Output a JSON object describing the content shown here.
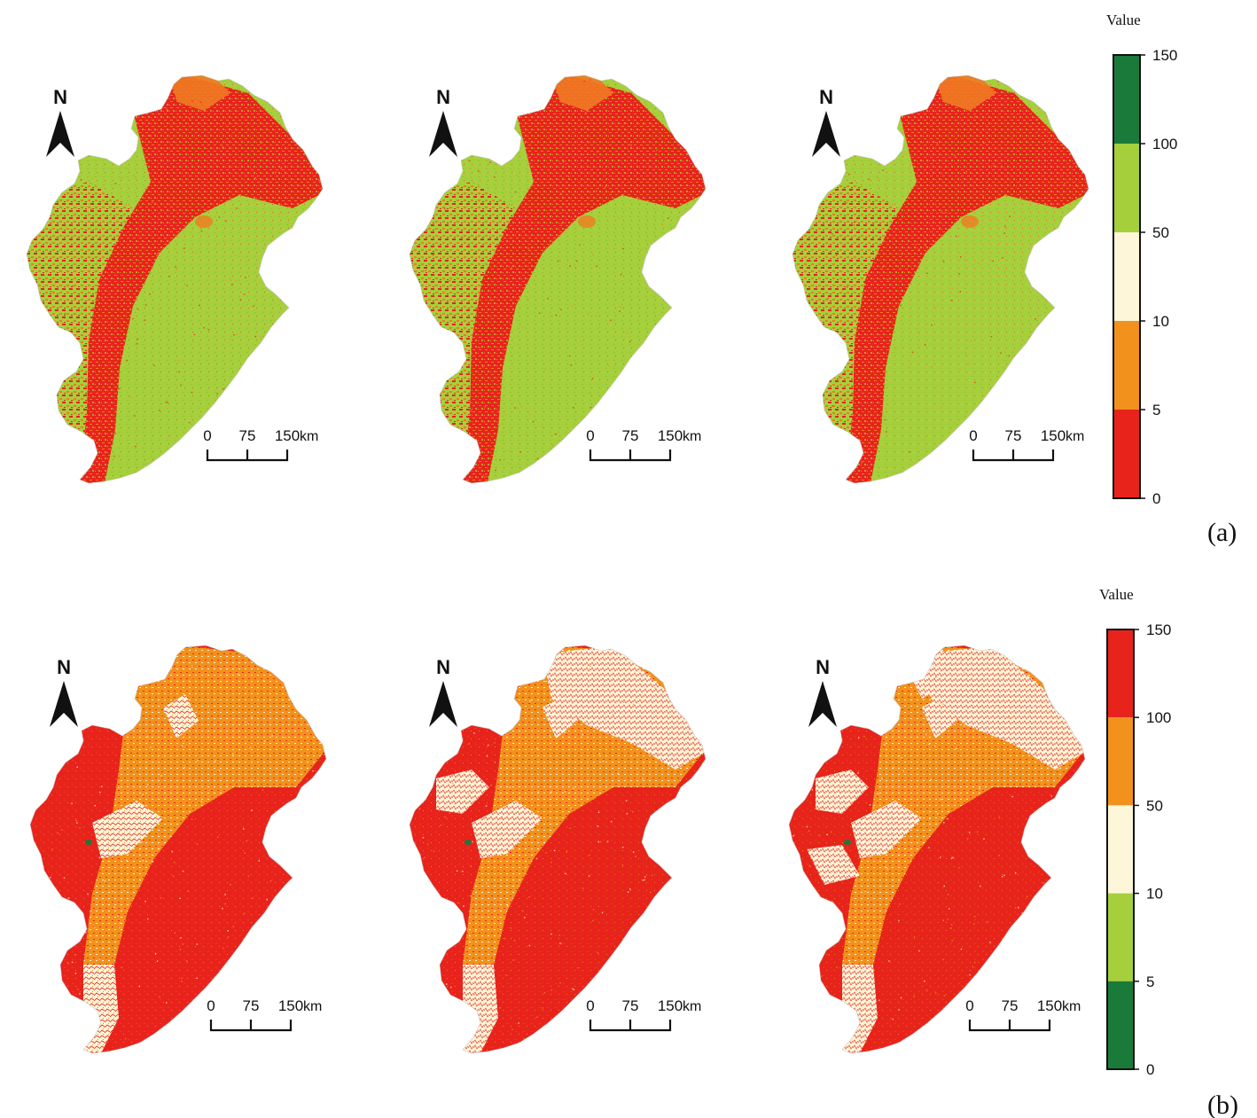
{
  "panels": [
    {
      "label": "(a)",
      "legend": {
        "title": "Value",
        "ticks": [
          "150",
          "100",
          "50",
          "10",
          "5",
          "0"
        ],
        "class_colors_top_to_bottom": [
          "#1a7a3a",
          "#a6cf3c",
          "#fdf6d8",
          "#f2911c",
          "#e8231c"
        ]
      },
      "palette": {
        "plain": "#a6cf3c",
        "plain_alt": "#b4d64a",
        "mountain": "#e8231c",
        "transition": "#f07a22",
        "light": "#fdf6d8",
        "speck": "#e8231c",
        "speck2": "#f2911c",
        "water": "#1a7a3a"
      },
      "maps": [
        {
          "mode": "a",
          "north": "N",
          "scale": {
            "ticks": [
              "0",
              "75",
              "150"
            ],
            "unit": "km"
          }
        },
        {
          "mode": "a",
          "north": "N",
          "scale": {
            "ticks": [
              "0",
              "75",
              "150"
            ],
            "unit": "km"
          }
        },
        {
          "mode": "a",
          "north": "N",
          "scale": {
            "ticks": [
              "0",
              "75",
              "150"
            ],
            "unit": "km"
          }
        }
      ]
    },
    {
      "label": "(b)",
      "legend": {
        "title": "Value",
        "ticks": [
          "150",
          "100",
          "50",
          "10",
          "5",
          "0"
        ],
        "class_colors_top_to_bottom": [
          "#e8231c",
          "#f2911c",
          "#fdf6d8",
          "#a6cf3c",
          "#1a7a3a"
        ]
      },
      "palette": {
        "plain": "#e8231c",
        "plain_alt": "#ee3a1e",
        "mountain": "#f2911c",
        "transition": "#f07a22",
        "light": "#fdf6d8",
        "speck": "#f2911c",
        "speck2": "#fdf6d8",
        "water": "#1a7a3a"
      },
      "maps": [
        {
          "mode": "b1",
          "north": "N",
          "scale": {
            "ticks": [
              "0",
              "75",
              "150"
            ],
            "unit": "km"
          }
        },
        {
          "mode": "b2",
          "north": "N",
          "scale": {
            "ticks": [
              "0",
              "75",
              "150"
            ],
            "unit": "km"
          }
        },
        {
          "mode": "b3",
          "north": "N",
          "scale": {
            "ticks": [
              "0",
              "75",
              "150"
            ],
            "unit": "km"
          }
        }
      ]
    }
  ]
}
